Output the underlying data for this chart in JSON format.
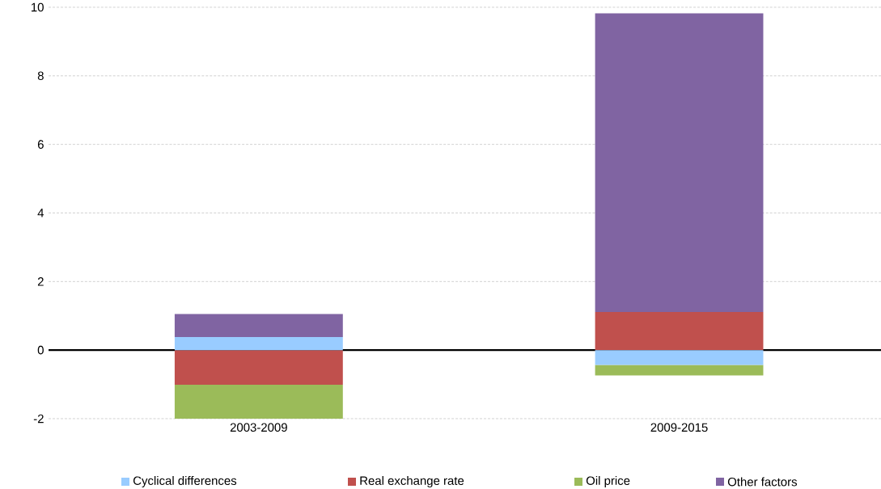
{
  "chart_data": {
    "type": "bar",
    "stacked": true,
    "categories": [
      "2003-2009",
      "2009-2015"
    ],
    "series": [
      {
        "name": "Cyclical differences",
        "color": "#99ccff",
        "values": [
          0.38,
          -0.43
        ]
      },
      {
        "name": "Real exchange rate",
        "color": "#c0504d",
        "values": [
          -1.01,
          1.11
        ]
      },
      {
        "name": "Oil price",
        "color": "#9bbb59",
        "values": [
          -0.99,
          -0.31
        ]
      },
      {
        "name": "Other factors",
        "color": "#8064a2",
        "values": [
          0.67,
          8.71
        ]
      }
    ],
    "ylim": [
      -2,
      10
    ],
    "yticks": [
      -2,
      0,
      2,
      4,
      6,
      8,
      10
    ],
    "grid": "y",
    "legend": "bottom"
  }
}
